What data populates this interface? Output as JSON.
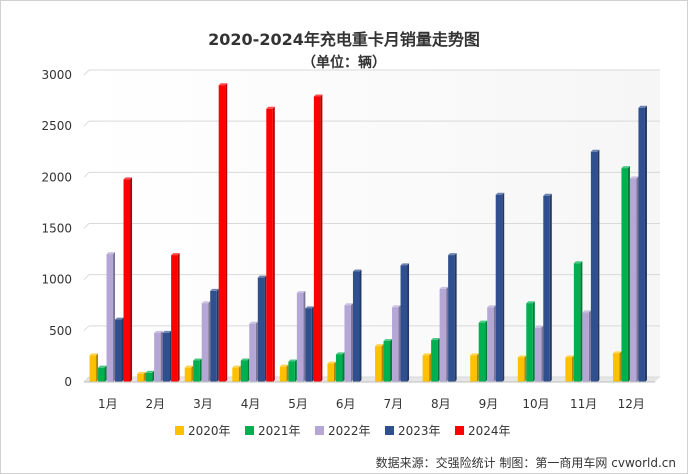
{
  "chart_data": {
    "type": "bar",
    "title": "2020-2024年充电重卡月销量走势图",
    "subtitle": "（单位：辆）",
    "categories": [
      "1月",
      "2月",
      "3月",
      "4月",
      "5月",
      "6月",
      "7月",
      "8月",
      "9月",
      "10月",
      "11月",
      "12月"
    ],
    "ylim": [
      0,
      3000
    ],
    "yticks": [
      0,
      500,
      1000,
      1500,
      2000,
      2500,
      3000
    ],
    "grid": true,
    "legend_position": "bottom",
    "series": [
      {
        "name": "2020年",
        "color": "#FFC000",
        "values": [
          260,
          80,
          140,
          140,
          150,
          180,
          350,
          260,
          260,
          240,
          240,
          280
        ]
      },
      {
        "name": "2021年",
        "color": "#00B050",
        "values": [
          140,
          90,
          210,
          210,
          200,
          270,
          400,
          410,
          580,
          770,
          1160,
          2090
        ]
      },
      {
        "name": "2022年",
        "color": "#B4A7D6",
        "values": [
          1250,
          480,
          770,
          570,
          870,
          750,
          730,
          910,
          730,
          530,
          680,
          1990
        ]
      },
      {
        "name": "2023年",
        "color": "#2F4F8F",
        "values": [
          610,
          480,
          890,
          1020,
          720,
          1080,
          1140,
          1240,
          1830,
          1820,
          2250,
          2680
        ]
      },
      {
        "name": "2024年",
        "color": "#FF0000",
        "values": [
          1980,
          1240,
          2900,
          2670,
          2790,
          null,
          null,
          null,
          null,
          null,
          null,
          null
        ]
      }
    ]
  },
  "footer": {
    "source": "数据来源：交强险统计  制图：第一商用车网 cvworld.cn"
  }
}
